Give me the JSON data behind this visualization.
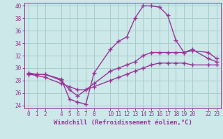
{
  "xlabel": "Windchill (Refroidissement éolien,°C)",
  "bg_color": "#cce8e8",
  "grid_color": "#aacccc",
  "line_color": "#993399",
  "line1_x": [
    0,
    1,
    2,
    4,
    5,
    6,
    7,
    8,
    10,
    11,
    12,
    13,
    14,
    15,
    16,
    17,
    18,
    19,
    20,
    22,
    23
  ],
  "line1_y": [
    29.0,
    29.0,
    29.0,
    28.2,
    25.0,
    24.5,
    24.2,
    29.2,
    33.0,
    34.3,
    35.0,
    38.0,
    40.0,
    40.0,
    39.8,
    38.5,
    34.5,
    32.5,
    33.0,
    31.5,
    31.0
  ],
  "line2_x": [
    0,
    1,
    2,
    4,
    5,
    6,
    7,
    8,
    10,
    11,
    12,
    13,
    14,
    15,
    16,
    17,
    18,
    19,
    20,
    22,
    23
  ],
  "line2_y": [
    29.2,
    29.0,
    29.0,
    28.0,
    26.5,
    25.5,
    26.5,
    27.5,
    29.5,
    30.0,
    30.5,
    31.0,
    32.0,
    32.5,
    32.5,
    32.5,
    32.5,
    32.5,
    32.8,
    32.5,
    31.5
  ],
  "line3_x": [
    0,
    1,
    2,
    4,
    5,
    6,
    7,
    8,
    10,
    11,
    12,
    13,
    14,
    15,
    16,
    17,
    18,
    19,
    20,
    22,
    23
  ],
  "line3_y": [
    29.0,
    28.8,
    28.5,
    27.5,
    27.0,
    26.5,
    26.5,
    27.0,
    28.0,
    28.5,
    29.0,
    29.5,
    30.0,
    30.5,
    30.8,
    30.8,
    30.8,
    30.8,
    30.5,
    30.5,
    30.5
  ],
  "xlim": [
    -0.5,
    23.5
  ],
  "ylim": [
    23.5,
    40.5
  ],
  "xticks": [
    0,
    1,
    2,
    4,
    5,
    6,
    7,
    8,
    10,
    11,
    12,
    13,
    14,
    15,
    16,
    17,
    18,
    19,
    20,
    22,
    23
  ],
  "yticks": [
    24,
    26,
    28,
    30,
    32,
    34,
    36,
    38,
    40
  ],
  "tick_color": "#993399",
  "tick_fontsize": 5.5,
  "xlabel_fontsize": 6.5,
  "marker": "+",
  "markersize": 4,
  "linewidth": 1.0
}
